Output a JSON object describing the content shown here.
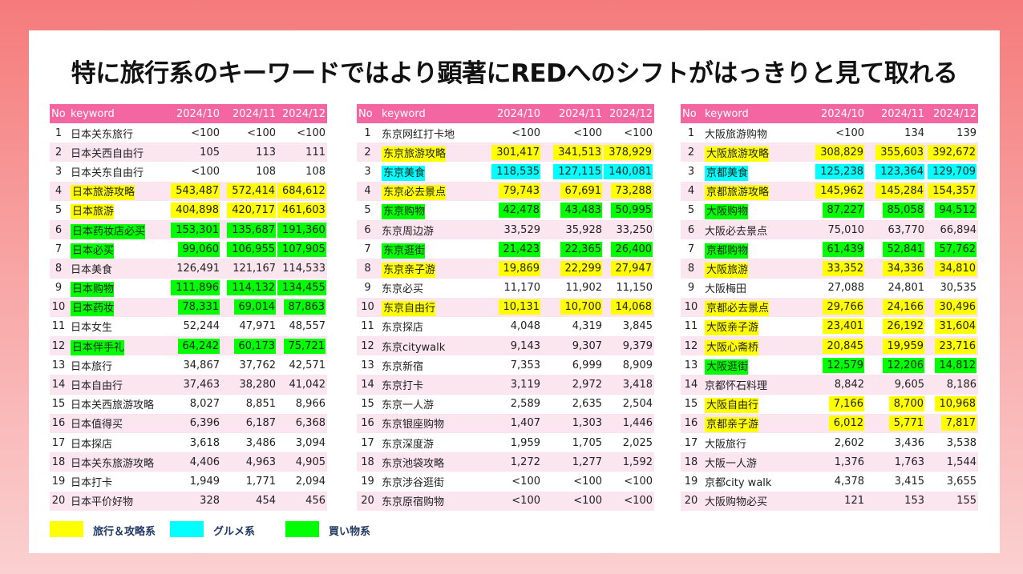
{
  "title": "特に旅行系のキーワードではより顕著にREDへのシフトがはっきりと見て取れる",
  "colors": {
    "travel": "#ffff00",
    "gourmet": "#00ffff",
    "shopping": "#00ff00",
    "header": "#f466a2",
    "stripe": "#fbe5ee"
  },
  "headers": {
    "no": "No",
    "keyword": "keyword",
    "m1": "2024/10",
    "m2": "2024/11",
    "m3": "2024/12"
  },
  "legend": [
    {
      "label": "旅行＆攻略系",
      "color": "yellow"
    },
    {
      "label": "グルメ系",
      "color": "cyan"
    },
    {
      "label": "買い物系",
      "color": "green"
    }
  ],
  "tables": [
    {
      "rows": [
        {
          "no": "1",
          "kw": "日本关东旅行",
          "v": [
            "<100",
            "<100",
            "<100"
          ],
          "hl": ""
        },
        {
          "no": "2",
          "kw": "日本关西自由行",
          "v": [
            "105",
            "113",
            "111"
          ],
          "hl": ""
        },
        {
          "no": "3",
          "kw": "日本关东自由行",
          "v": [
            "<100",
            "108",
            "108"
          ],
          "hl": ""
        },
        {
          "no": "4",
          "kw": "日本旅游攻略",
          "v": [
            "543,487",
            "572,414",
            "684,612"
          ],
          "hl": "yellow"
        },
        {
          "no": "5",
          "kw": "日本旅游",
          "v": [
            "404,898",
            "420,717",
            "461,603"
          ],
          "hl": "yellow"
        },
        {
          "no": "6",
          "kw": "日本药妆店必买",
          "v": [
            "153,301",
            "135,687",
            "191,360"
          ],
          "hl": "green"
        },
        {
          "no": "7",
          "kw": "日本必买",
          "v": [
            "99,060",
            "106,955",
            "107,905"
          ],
          "hl": "green"
        },
        {
          "no": "8",
          "kw": "日本美食",
          "v": [
            "126,491",
            "121,167",
            "114,533"
          ],
          "hl": ""
        },
        {
          "no": "9",
          "kw": "日本购物",
          "v": [
            "111,896",
            "114,132",
            "134,455"
          ],
          "hl": "green"
        },
        {
          "no": "10",
          "kw": "日本药妆",
          "v": [
            "78,331",
            "69,014",
            "87,863"
          ],
          "hl": "green"
        },
        {
          "no": "11",
          "kw": "日本女生",
          "v": [
            "52,244",
            "47,971",
            "48,557"
          ],
          "hl": ""
        },
        {
          "no": "12",
          "kw": "日本伴手礼",
          "v": [
            "64,242",
            "60,173",
            "75,721"
          ],
          "hl": "green"
        },
        {
          "no": "13",
          "kw": "日本旅行",
          "v": [
            "34,867",
            "37,762",
            "42,571"
          ],
          "hl": ""
        },
        {
          "no": "14",
          "kw": "日本自由行",
          "v": [
            "37,463",
            "38,280",
            "41,042"
          ],
          "hl": ""
        },
        {
          "no": "15",
          "kw": "日本关西旅游攻略",
          "v": [
            "8,027",
            "8,851",
            "8,966"
          ],
          "hl": ""
        },
        {
          "no": "16",
          "kw": "日本值得买",
          "v": [
            "6,396",
            "6,187",
            "6,368"
          ],
          "hl": ""
        },
        {
          "no": "17",
          "kw": "日本探店",
          "v": [
            "3,618",
            "3,486",
            "3,094"
          ],
          "hl": ""
        },
        {
          "no": "18",
          "kw": "日本关东旅游攻略",
          "v": [
            "4,406",
            "4,963",
            "4,905"
          ],
          "hl": ""
        },
        {
          "no": "19",
          "kw": "日本打卡",
          "v": [
            "1,949",
            "1,771",
            "2,094"
          ],
          "hl": ""
        },
        {
          "no": "20",
          "kw": "日本平价好物",
          "v": [
            "328",
            "454",
            "456"
          ],
          "hl": ""
        }
      ]
    },
    {
      "rows": [
        {
          "no": "1",
          "kw": "东京网红打卡地",
          "v": [
            "<100",
            "<100",
            "<100"
          ],
          "hl": ""
        },
        {
          "no": "2",
          "kw": "东京旅游攻略",
          "v": [
            "301,417",
            "341,513",
            "378,929"
          ],
          "hl": "yellow"
        },
        {
          "no": "3",
          "kw": "东京美食",
          "v": [
            "118,535",
            "127,115",
            "140,081"
          ],
          "hl": "cyan"
        },
        {
          "no": "4",
          "kw": "东京必去景点",
          "v": [
            "79,743",
            "67,691",
            "73,288"
          ],
          "hl": "yellow"
        },
        {
          "no": "5",
          "kw": "东京购物",
          "v": [
            "42,478",
            "43,483",
            "50,995"
          ],
          "hl": "green"
        },
        {
          "no": "6",
          "kw": "东京周边游",
          "v": [
            "33,529",
            "35,928",
            "33,250"
          ],
          "hl": ""
        },
        {
          "no": "7",
          "kw": "东京逛街",
          "v": [
            "21,423",
            "22,365",
            "26,400"
          ],
          "hl": "green"
        },
        {
          "no": "8",
          "kw": "东京亲子游",
          "v": [
            "19,869",
            "22,299",
            "27,947"
          ],
          "hl": "yellow"
        },
        {
          "no": "9",
          "kw": "东京必买",
          "v": [
            "11,170",
            "11,902",
            "11,150"
          ],
          "hl": ""
        },
        {
          "no": "10",
          "kw": "东京自由行",
          "v": [
            "10,131",
            "10,700",
            "14,068"
          ],
          "hl": "yellow"
        },
        {
          "no": "11",
          "kw": "东京探店",
          "v": [
            "4,048",
            "4,319",
            "3,845"
          ],
          "hl": ""
        },
        {
          "no": "12",
          "kw": "东京citywalk",
          "v": [
            "9,143",
            "9,307",
            "9,379"
          ],
          "hl": ""
        },
        {
          "no": "13",
          "kw": "东京新宿",
          "v": [
            "7,353",
            "6,999",
            "8,909"
          ],
          "hl": ""
        },
        {
          "no": "14",
          "kw": "东京打卡",
          "v": [
            "3,119",
            "2,972",
            "3,418"
          ],
          "hl": ""
        },
        {
          "no": "15",
          "kw": "东京一人游",
          "v": [
            "2,589",
            "2,635",
            "2,504"
          ],
          "hl": ""
        },
        {
          "no": "16",
          "kw": "东京银座购物",
          "v": [
            "1,407",
            "1,303",
            "1,446"
          ],
          "hl": ""
        },
        {
          "no": "17",
          "kw": "东京深度游",
          "v": [
            "1,959",
            "1,705",
            "2,025"
          ],
          "hl": ""
        },
        {
          "no": "18",
          "kw": "东京池袋攻略",
          "v": [
            "1,272",
            "1,277",
            "1,592"
          ],
          "hl": ""
        },
        {
          "no": "19",
          "kw": "东京涉谷逛街",
          "v": [
            "<100",
            "<100",
            "<100"
          ],
          "hl": ""
        },
        {
          "no": "20",
          "kw": "东京原宿购物",
          "v": [
            "<100",
            "<100",
            "<100"
          ],
          "hl": ""
        }
      ]
    },
    {
      "rows": [
        {
          "no": "1",
          "kw": "大阪旅游购物",
          "v": [
            "<100",
            "134",
            "139"
          ],
          "hl": ""
        },
        {
          "no": "2",
          "kw": "大阪旅游攻略",
          "v": [
            "308,829",
            "355,603",
            "392,672"
          ],
          "hl": "yellow"
        },
        {
          "no": "3",
          "kw": "京都美食",
          "v": [
            "125,238",
            "123,364",
            "129,709"
          ],
          "hl": "cyan"
        },
        {
          "no": "4",
          "kw": "京都旅游攻略",
          "v": [
            "145,962",
            "145,284",
            "154,357"
          ],
          "hl": "yellow"
        },
        {
          "no": "5",
          "kw": "大阪购物",
          "v": [
            "87,227",
            "85,058",
            "94,512"
          ],
          "hl": "green"
        },
        {
          "no": "6",
          "kw": "大阪必去景点",
          "v": [
            "75,010",
            "63,770",
            "66,894"
          ],
          "hl": ""
        },
        {
          "no": "7",
          "kw": "京都购物",
          "v": [
            "61,439",
            "52,841",
            "57,762"
          ],
          "hl": "green"
        },
        {
          "no": "8",
          "kw": "大阪旅游",
          "v": [
            "33,352",
            "34,336",
            "34,810"
          ],
          "hl": "yellow"
        },
        {
          "no": "9",
          "kw": "大阪梅田",
          "v": [
            "27,088",
            "24,801",
            "30,535"
          ],
          "hl": ""
        },
        {
          "no": "10",
          "kw": "京都必去景点",
          "v": [
            "29,766",
            "24,166",
            "30,496"
          ],
          "hl": "yellow"
        },
        {
          "no": "11",
          "kw": "大阪亲子游",
          "v": [
            "23,401",
            "26,192",
            "31,604"
          ],
          "hl": "yellow"
        },
        {
          "no": "12",
          "kw": "大阪心斋桥",
          "v": [
            "20,845",
            "19,959",
            "23,716"
          ],
          "hl": "yellow"
        },
        {
          "no": "13",
          "kw": "大阪逛街",
          "v": [
            "12,579",
            "12,206",
            "14,812"
          ],
          "hl": "green"
        },
        {
          "no": "14",
          "kw": "京都怀石料理",
          "v": [
            "8,842",
            "9,605",
            "8,186"
          ],
          "hl": ""
        },
        {
          "no": "15",
          "kw": "大阪自由行",
          "v": [
            "7,166",
            "8,700",
            "10,968"
          ],
          "hl": "yellow"
        },
        {
          "no": "16",
          "kw": "京都亲子游",
          "v": [
            "6,012",
            "5,771",
            "7,817"
          ],
          "hl": "yellow"
        },
        {
          "no": "17",
          "kw": "大阪旅行",
          "v": [
            "2,602",
            "3,436",
            "3,538"
          ],
          "hl": ""
        },
        {
          "no": "18",
          "kw": "大阪一人游",
          "v": [
            "1,376",
            "1,763",
            "1,544"
          ],
          "hl": ""
        },
        {
          "no": "19",
          "kw": "京都city walk",
          "v": [
            "4,378",
            "3,415",
            "3,655"
          ],
          "hl": ""
        },
        {
          "no": "20",
          "kw": "大阪购物必买",
          "v": [
            "121",
            "153",
            "155"
          ],
          "hl": ""
        }
      ]
    }
  ]
}
